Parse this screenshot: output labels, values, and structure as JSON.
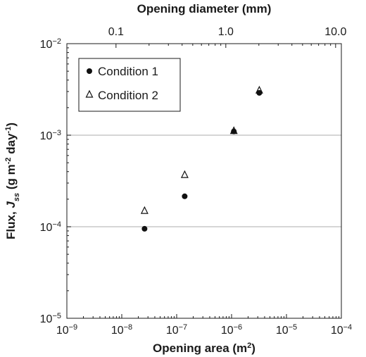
{
  "chart_data": {
    "type": "scatter",
    "x_axis": {
      "label_prefix": "Opening area (m",
      "label_sup": "2",
      "label_suffix": ")",
      "scale": "log",
      "range": [
        1e-09,
        0.0001
      ],
      "ticks": [
        {
          "value": 1e-09,
          "base": "10",
          "exp": "−9"
        },
        {
          "value": 1e-08,
          "base": "10",
          "exp": "−8"
        },
        {
          "value": 1e-07,
          "base": "10",
          "exp": "−7"
        },
        {
          "value": 1e-06,
          "base": "10",
          "exp": "−6"
        },
        {
          "value": 1e-05,
          "base": "10",
          "exp": "−5"
        },
        {
          "value": 0.0001,
          "base": "10",
          "exp": "−4"
        }
      ]
    },
    "x2_axis": {
      "label": "Opening diameter (mm)",
      "scale": "log",
      "ticks": [
        {
          "value": 0.1,
          "label": "0.1"
        },
        {
          "value": 1.0,
          "label": "1.0"
        },
        {
          "value": 10.0,
          "label": "10.0"
        }
      ]
    },
    "y_axis": {
      "label_prefix": "Flux, ",
      "label_italic": "J",
      "label_sub": "ss",
      "label_mid": " (g m",
      "label_sup1": "-2",
      "label_mid2": " day",
      "label_sup2": "-1",
      "label_suffix": ")",
      "scale": "log",
      "range": [
        1e-05,
        0.01
      ],
      "ticks": [
        {
          "value": 1e-05,
          "base": "10",
          "exp": "−5"
        },
        {
          "value": 0.0001,
          "base": "10",
          "exp": "−4"
        },
        {
          "value": 0.001,
          "base": "10",
          "exp": "−3"
        },
        {
          "value": 0.01,
          "base": "10",
          "exp": "−2"
        }
      ],
      "gridlines": [
        0.0001,
        0.001
      ]
    },
    "legend": {
      "position": "top-left"
    },
    "series": [
      {
        "name": "Condition 1",
        "marker": "filled-circle",
        "color": "#111111",
        "points": [
          {
            "x": 2.6e-08,
            "y": 9.5e-05
          },
          {
            "x": 1.4e-07,
            "y": 0.000215
          },
          {
            "x": 1.1e-06,
            "y": 0.0011
          },
          {
            "x": 3.2e-06,
            "y": 0.0029
          }
        ]
      },
      {
        "name": "Condition 2",
        "marker": "open-triangle",
        "color": "#111111",
        "points": [
          {
            "x": 2.6e-08,
            "y": 0.00015
          },
          {
            "x": 1.4e-07,
            "y": 0.00037
          },
          {
            "x": 1.1e-06,
            "y": 0.00112
          },
          {
            "x": 3.2e-06,
            "y": 0.0031
          }
        ]
      }
    ]
  }
}
